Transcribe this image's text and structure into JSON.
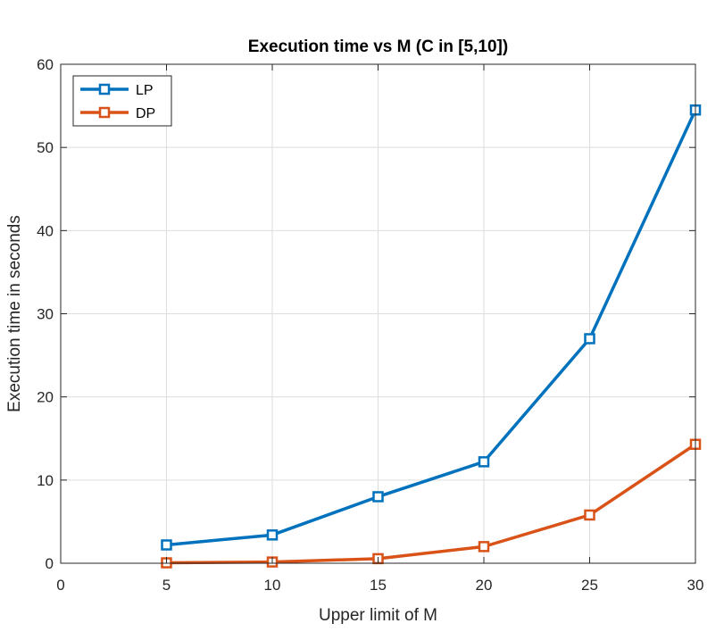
{
  "chart_data": {
    "type": "line",
    "title": "Execution time vs M (C in [5,10])",
    "xlabel": "Upper limit of M",
    "ylabel": "Execution time in seconds",
    "xlim": [
      0,
      30
    ],
    "ylim": [
      0,
      60
    ],
    "xticks": [
      0,
      5,
      10,
      15,
      20,
      25,
      30
    ],
    "yticks": [
      0,
      10,
      20,
      30,
      40,
      50,
      60
    ],
    "grid": true,
    "legend_position": "top-left",
    "x": [
      5,
      10,
      15,
      20,
      25,
      30
    ],
    "series": [
      {
        "name": "LP",
        "color": "#0072BD",
        "marker": "square",
        "values": [
          2.2,
          3.4,
          8.0,
          12.2,
          27.0,
          54.5
        ]
      },
      {
        "name": "DP",
        "color": "#D95319",
        "marker": "square",
        "values": [
          0.05,
          0.15,
          0.55,
          2.0,
          5.8,
          14.3
        ]
      }
    ]
  }
}
